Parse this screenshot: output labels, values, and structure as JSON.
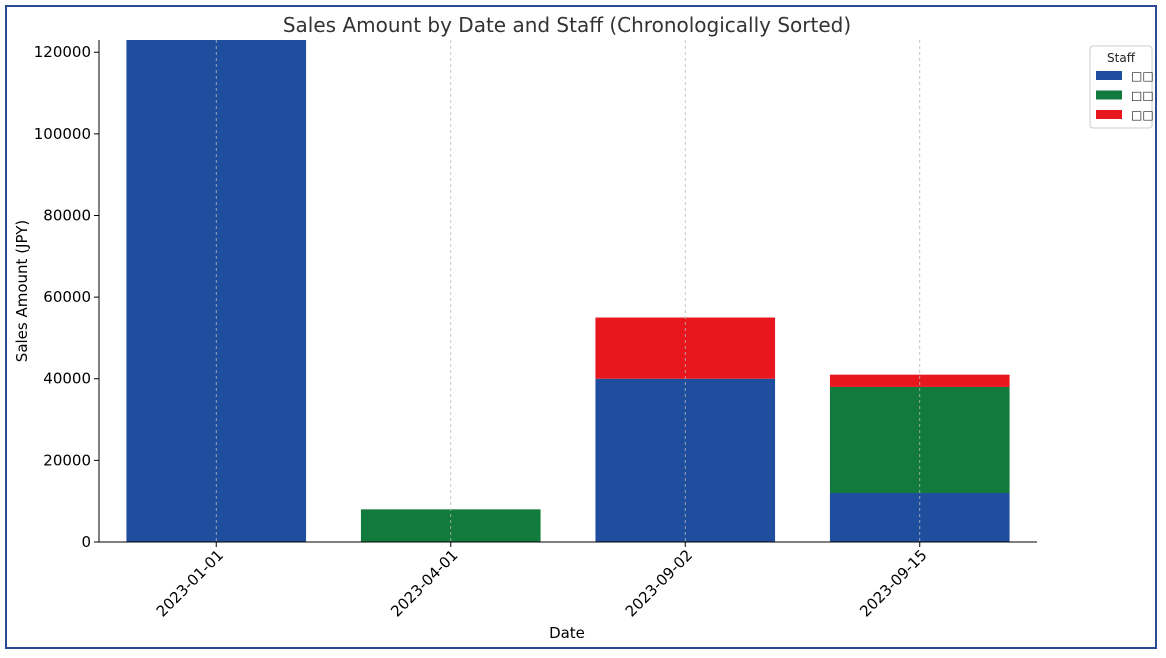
{
  "chart_data": {
    "type": "bar",
    "stacked": true,
    "title": "Sales Amount by Date and Staff (Chronologically Sorted)",
    "xlabel": "Date",
    "ylabel": "Sales Amount (JPY)",
    "categories": [
      "2023-01-01",
      "2023-04-01",
      "2023-09-02",
      "2023-09-15"
    ],
    "ylim": [
      0,
      123000
    ],
    "yticks": [
      0,
      20000,
      40000,
      60000,
      80000,
      100000,
      120000
    ],
    "grid": "vertical dashed",
    "legend": {
      "title": "Staff",
      "placement": "top-right"
    },
    "series": [
      {
        "name": "□□",
        "color": "#1f4e9f",
        "values": [
          123000,
          0,
          40000,
          12000
        ]
      },
      {
        "name": "□□",
        "color": "#117a3c",
        "values": [
          0,
          8000,
          0,
          26000
        ]
      },
      {
        "name": "□□",
        "color": "#e8161d",
        "values": [
          0,
          0,
          15000,
          3000
        ]
      }
    ]
  }
}
